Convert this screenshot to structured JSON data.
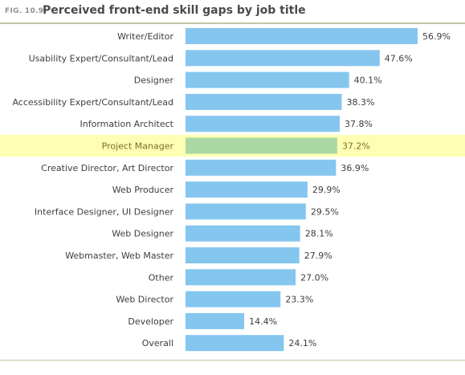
{
  "figure": {
    "label": "FIG. 10.9",
    "title": "Perceived front-end skill gaps by job title"
  },
  "colors": {
    "bar": "#85c6ef",
    "highlight_bar": "#aad9a4",
    "highlight_band": "#ffffb3",
    "rule": "#c8c6a4"
  },
  "chart_data": {
    "type": "bar",
    "orientation": "horizontal",
    "title": "Perceived front-end skill gaps by job title",
    "xlabel": "",
    "ylabel": "",
    "unit": "%",
    "xlim": [
      0,
      60
    ],
    "grid": false,
    "highlighted_category": "Project Manager",
    "categories": [
      "Writer/Editor",
      "Usability Expert/Consultant/Lead",
      "Designer",
      "Accessibility Expert/Consultant/Lead",
      "Information Architect",
      "Project Manager",
      "Creative Director, Art Director",
      "Web Producer",
      "Interface Designer, UI Designer",
      "Web Designer",
      "Webmaster, Web Master",
      "Other",
      "Web Director",
      "Developer",
      "Overall"
    ],
    "values": [
      56.9,
      47.6,
      40.1,
      38.3,
      37.8,
      37.2,
      36.9,
      29.9,
      29.5,
      28.1,
      27.9,
      27.0,
      23.3,
      14.4,
      24.1
    ],
    "value_labels": [
      "56.9%",
      "47.6%",
      "40.1%",
      "38.3%",
      "37.8%",
      "37.2%",
      "36.9%",
      "29.9%",
      "29.5%",
      "28.1%",
      "27.9%",
      "27.0%",
      "23.3%",
      "14.4%",
      "24.1%"
    ]
  }
}
